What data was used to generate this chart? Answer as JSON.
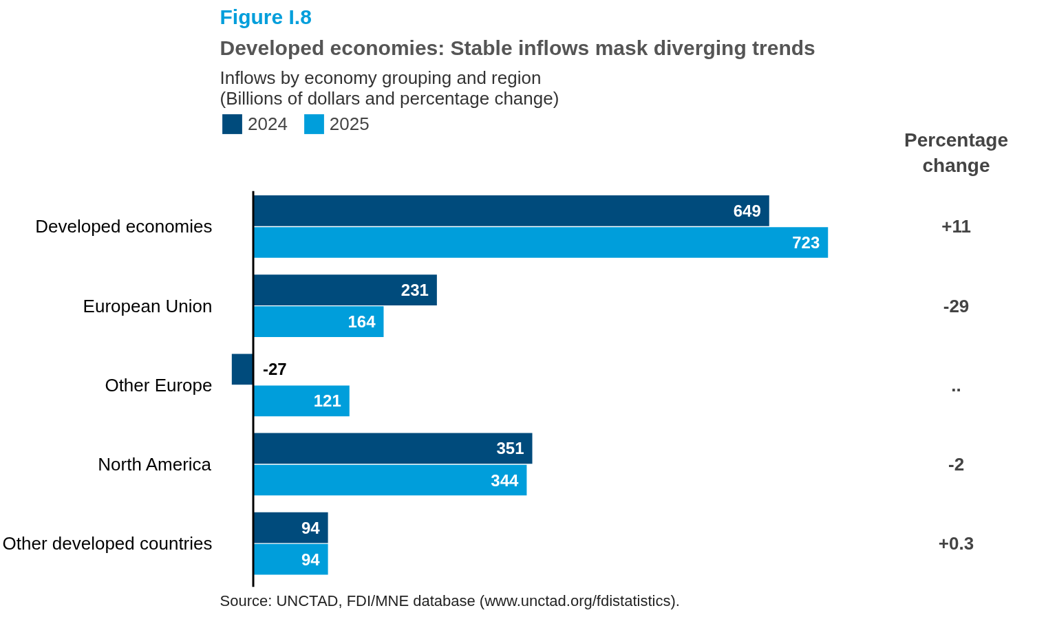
{
  "chart_data": {
    "type": "bar",
    "orientation": "horizontal",
    "title": "Developed economies: Stable inflows mask diverging trends",
    "subtitle": "Inflows by economy grouping and region\n(Billions of dollars and percentage change)",
    "categories": [
      "Developed economies",
      "European Union",
      "Other Europe",
      "North America",
      "Other developed countries"
    ],
    "series": [
      {
        "name": "2024",
        "color": "#004b7c",
        "values": [
          649,
          231,
          -27,
          351,
          94
        ]
      },
      {
        "name": "2025",
        "color": "#009edb",
        "values": [
          723,
          164,
          121,
          344,
          94
        ]
      }
    ],
    "data_labels": true,
    "legend": "top left",
    "grid": false,
    "annotations": [
      "Figure I.8",
      "Percentage change",
      "Source: UNCTAD, FDI/MNE database (www.unctad.org/fdistatistics).",
      "+11",
      "-29",
      "..",
      "-2",
      "+0.3"
    ]
  }
}
